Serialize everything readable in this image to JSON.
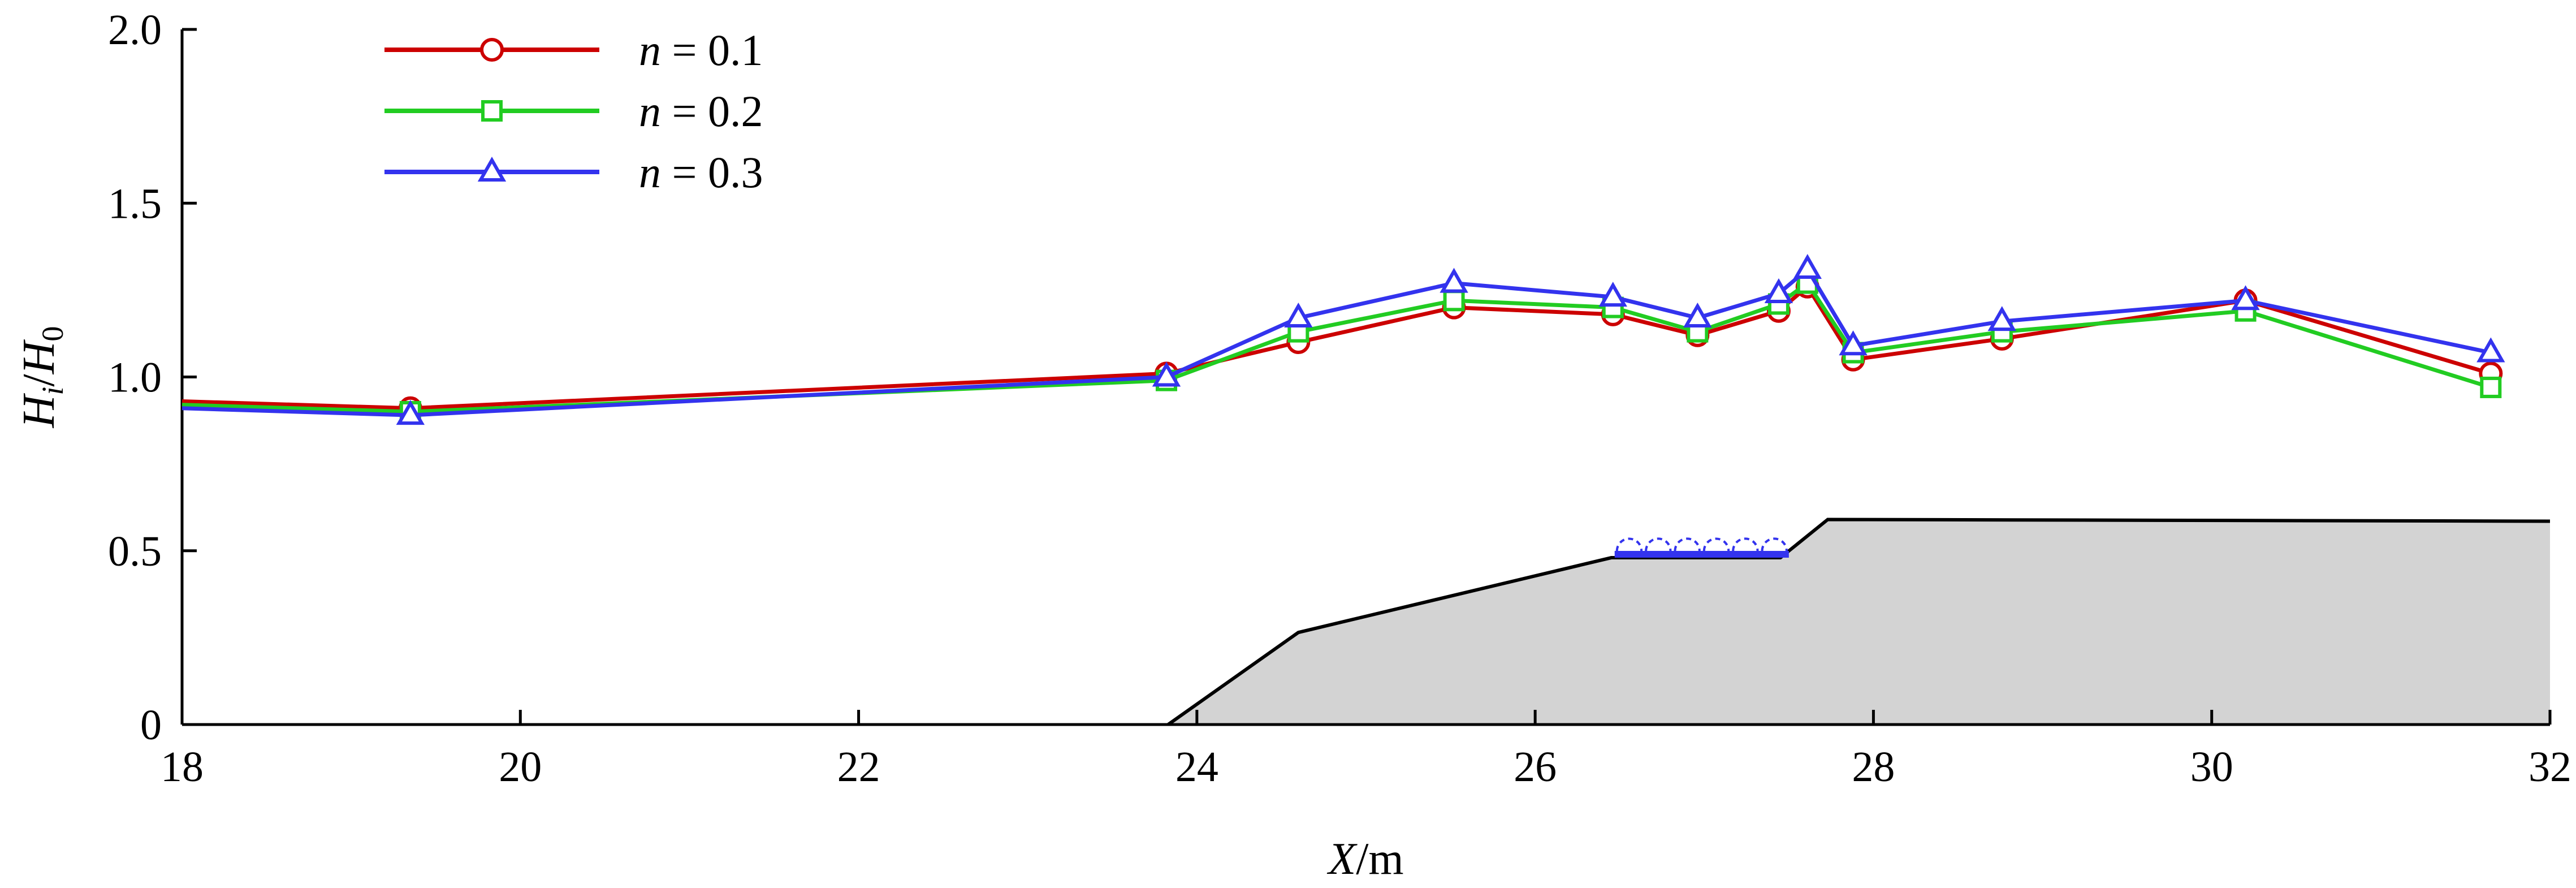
{
  "chart_data": {
    "type": "line",
    "title": "",
    "xlabel": {
      "var": "X",
      "unit": "/m"
    },
    "ylabel": {
      "var": "H",
      "sub": "i",
      "sep": "/",
      "var2": "H",
      "sub2": "0"
    },
    "xlim": [
      18,
      32
    ],
    "ylim": [
      0,
      2.0
    ],
    "xticks": [
      18,
      20,
      22,
      24,
      26,
      28,
      30,
      32
    ],
    "xtick_labels": [
      "18",
      "20",
      "22",
      "24",
      "26",
      "28",
      "30",
      "32"
    ],
    "yticks": [
      0,
      0.5,
      1.0,
      1.5,
      2.0
    ],
    "ytick_labels": [
      "0",
      "0.5",
      "1.0",
      "1.5",
      "2.0"
    ],
    "grid": false,
    "legend_position": "top-left",
    "series": [
      {
        "name": "n = 0.1",
        "var": "n",
        "eq": " = 0.1",
        "color": "#cc0000",
        "marker": "circle",
        "points": [
          [
            18,
            0.93
          ],
          [
            19.35,
            0.91
          ],
          [
            23.82,
            1.01
          ],
          [
            24.6,
            1.1
          ],
          [
            25.52,
            1.2
          ],
          [
            26.46,
            1.18
          ],
          [
            26.96,
            1.12
          ],
          [
            27.44,
            1.19
          ],
          [
            27.61,
            1.26
          ],
          [
            27.88,
            1.05
          ],
          [
            28.76,
            1.11
          ],
          [
            30.2,
            1.22
          ],
          [
            31.65,
            1.01
          ]
        ]
      },
      {
        "name": "n = 0.2",
        "var": "n",
        "eq": " = 0.2",
        "color": "#22cc22",
        "marker": "square",
        "points": [
          [
            18,
            0.92
          ],
          [
            19.35,
            0.9
          ],
          [
            23.82,
            0.99
          ],
          [
            24.6,
            1.13
          ],
          [
            25.52,
            1.22
          ],
          [
            26.46,
            1.2
          ],
          [
            26.96,
            1.13
          ],
          [
            27.44,
            1.21
          ],
          [
            27.61,
            1.27
          ],
          [
            27.88,
            1.07
          ],
          [
            28.76,
            1.13
          ],
          [
            30.2,
            1.19
          ],
          [
            31.65,
            0.97
          ]
        ]
      },
      {
        "name": "n = 0.3",
        "var": "n",
        "eq": " = 0.3",
        "color": "#3333ee",
        "marker": "triangle",
        "points": [
          [
            18,
            0.91
          ],
          [
            19.35,
            0.89
          ],
          [
            23.82,
            1.0
          ],
          [
            24.6,
            1.17
          ],
          [
            25.52,
            1.27
          ],
          [
            26.46,
            1.23
          ],
          [
            26.96,
            1.17
          ],
          [
            27.44,
            1.24
          ],
          [
            27.61,
            1.31
          ],
          [
            27.88,
            1.09
          ],
          [
            28.76,
            1.16
          ],
          [
            30.2,
            1.22
          ],
          [
            31.65,
            1.07
          ]
        ]
      }
    ],
    "bathymetry": {
      "fill": "#d3d3d3",
      "outline": [
        [
          23.83,
          0
        ],
        [
          24.6,
          0.265
        ],
        [
          26.45,
          0.48
        ],
        [
          27.45,
          0.48
        ],
        [
          27.73,
          0.59
        ],
        [
          32,
          0.585
        ]
      ]
    },
    "breakwater": {
      "color": "#3333ee",
      "x_start": 26.47,
      "x_end": 27.5,
      "y": 0.48,
      "units": 6
    }
  }
}
